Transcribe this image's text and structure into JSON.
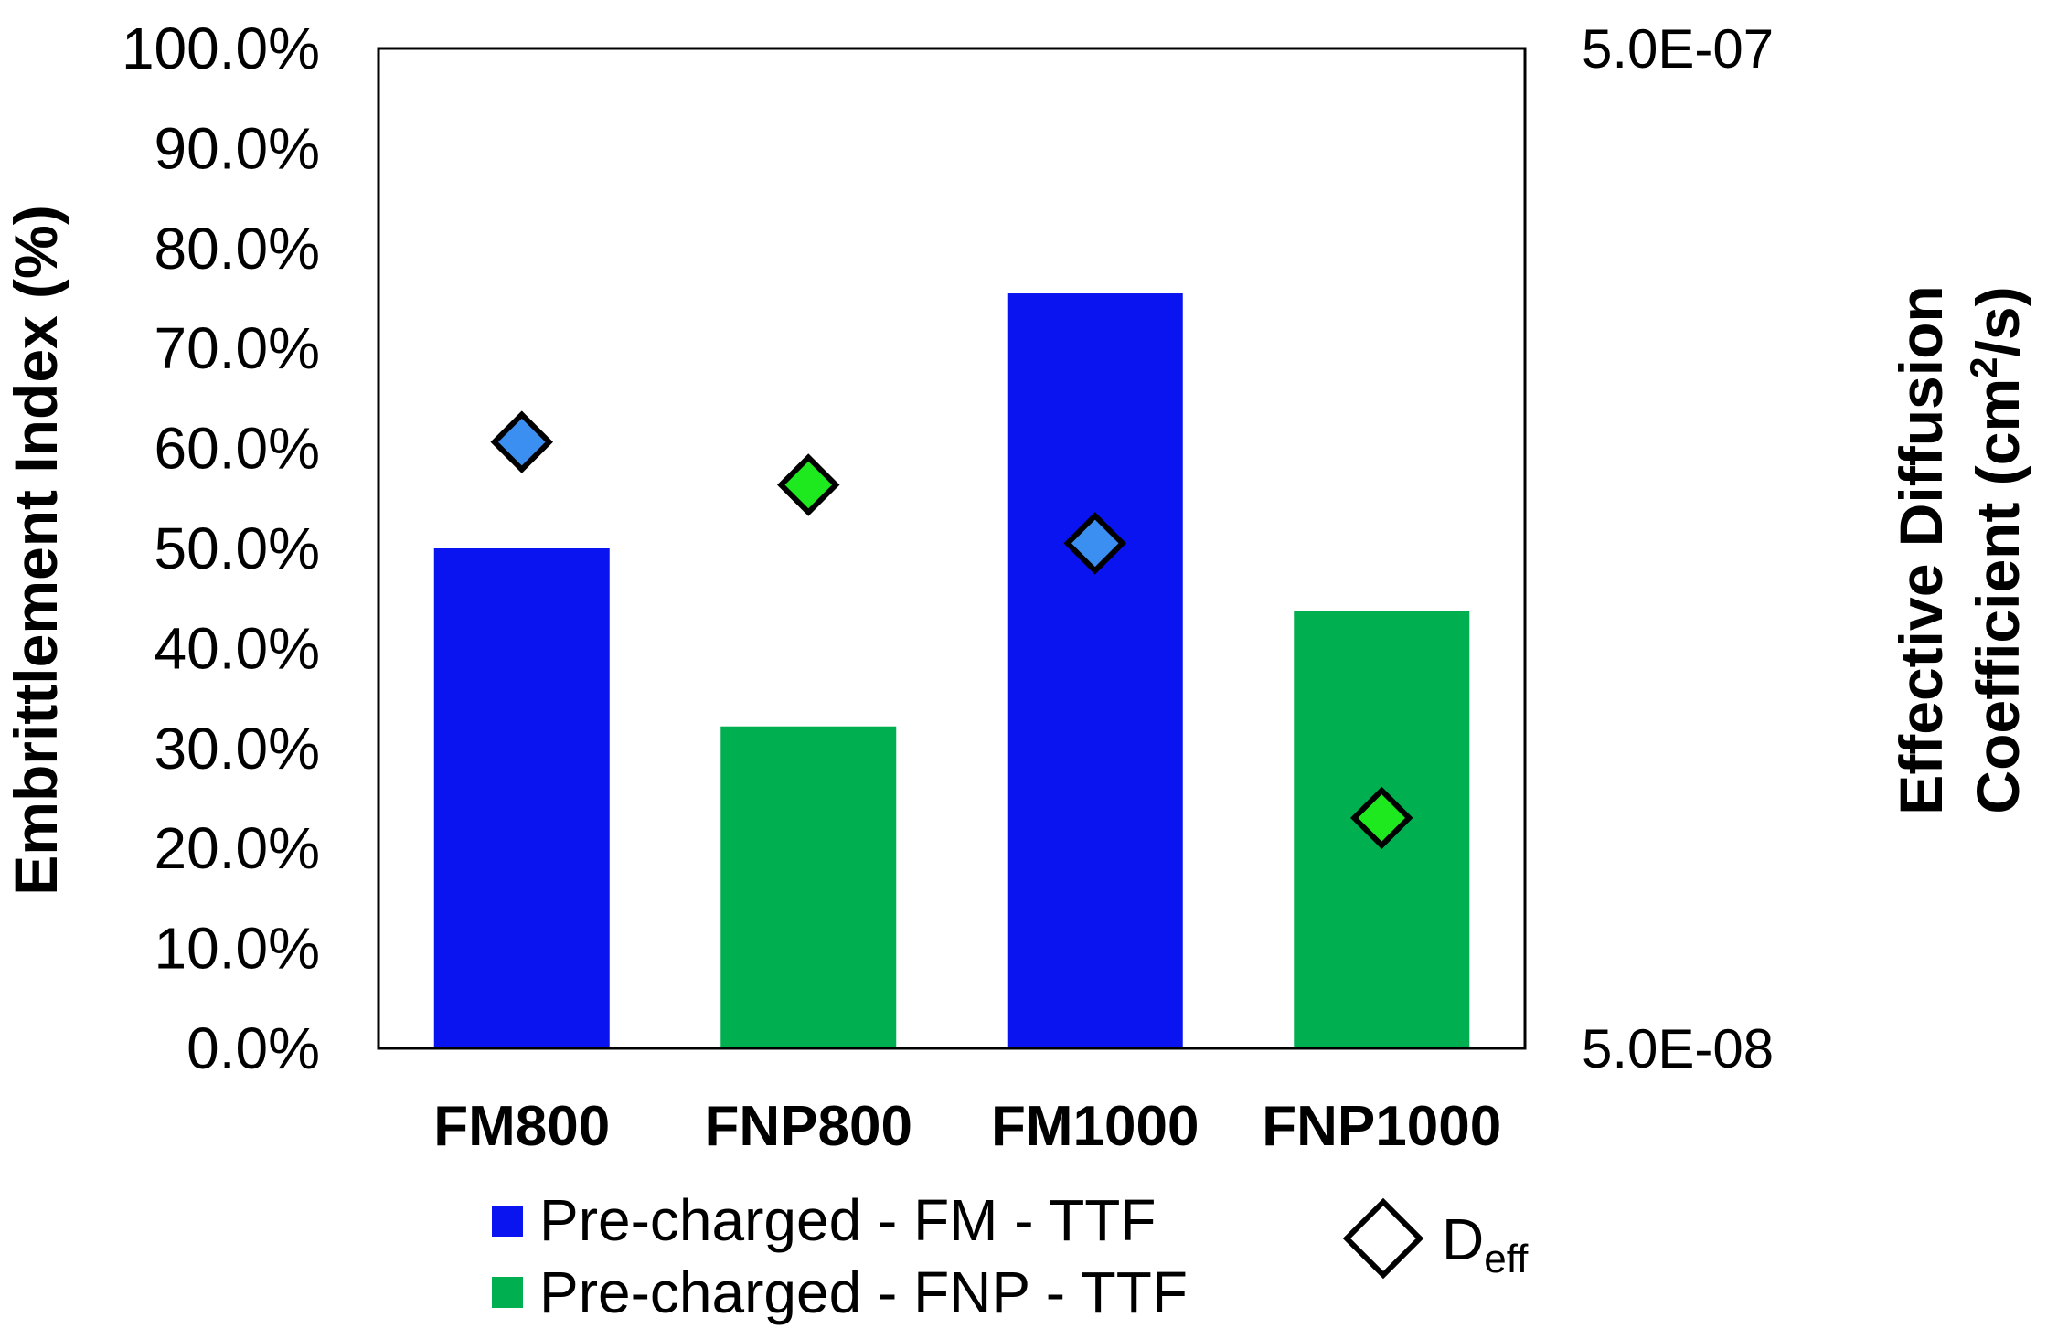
{
  "chart_data": {
    "type": "bar",
    "categories": [
      "FM800",
      "FNP800",
      "FM1000",
      "FNP1000"
    ],
    "series": [
      {
        "name": "Pre-charged - FM - TTF",
        "axis": "left",
        "color": "#0a14f0",
        "values": [
          50.0,
          null,
          75.5,
          null
        ]
      },
      {
        "name": "Pre-charged - FNP - TTF",
        "axis": "left",
        "color": "#00b050",
        "values": [
          null,
          32.2,
          null,
          43.7
        ]
      },
      {
        "name": "Deff",
        "type": "scatter",
        "marker": "diamond",
        "axis": "right",
        "scale": "log",
        "colors": [
          "#3b8ff0",
          "#1ee81e",
          "#3b8ff0",
          "#1ee81e"
        ],
        "values": [
          2.02e-07,
          1.83e-07,
          1.6e-07,
          8.5e-08
        ]
      }
    ],
    "title": "",
    "ylabel": "Embrittlement Index (%)",
    "ylim": [
      0,
      100
    ],
    "yticks": [
      "0.0%",
      "10.0%",
      "20.0%",
      "30.0%",
      "40.0%",
      "50.0%",
      "60.0%",
      "70.0%",
      "80.0%",
      "90.0%",
      "100.0%"
    ],
    "y2label_line1": "Effective Diffusion",
    "y2label_line2_prefix": "Coefficient (cm",
    "y2label_line2_sup": "2",
    "y2label_line2_suffix": "/s)",
    "y2lim": [
      5e-08,
      5e-07
    ],
    "y2scale": "log",
    "y2ticks": [
      "5.0E-08",
      "5.0E-07"
    ],
    "grid": false,
    "legend_position": "bottom",
    "legend": {
      "entries": [
        "Pre-charged - FM - TTF",
        "Pre-charged - FNP - TTF"
      ],
      "marker_label_main": "D",
      "marker_label_sub": "eff"
    }
  }
}
